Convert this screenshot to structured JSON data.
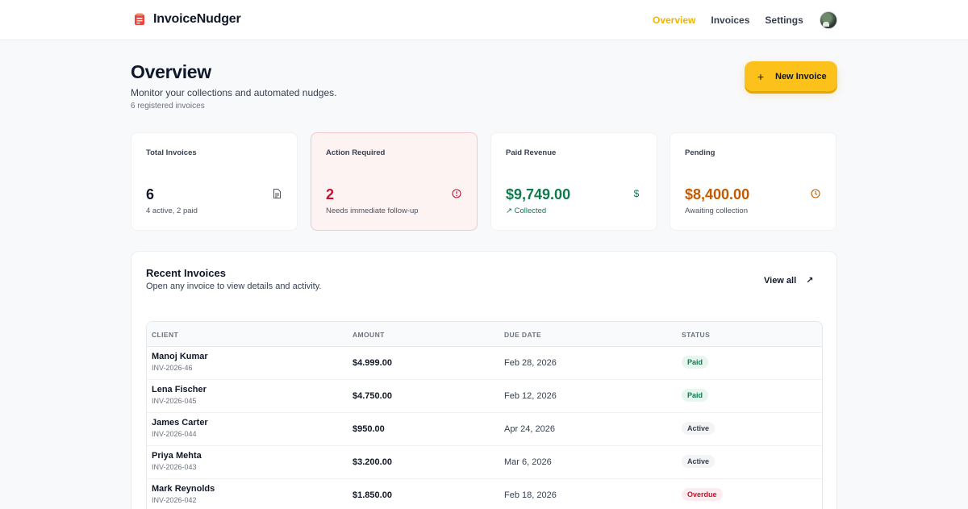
{
  "app": {
    "name": "InvoiceNudger",
    "brand_color": "#e8453c",
    "accent_color": "#fcc21b"
  },
  "nav": {
    "links": [
      {
        "label": "Overview",
        "active": true
      },
      {
        "label": "Invoices",
        "active": false
      },
      {
        "label": "Settings",
        "active": false
      }
    ],
    "avatar_icon": "user-avatar"
  },
  "header": {
    "title": "Overview",
    "subtitle": "Monitor your collections and automated nudges.",
    "count_text": "6 registered invoices",
    "new_button_label": "New Invoice",
    "new_button_icon": "plus-icon"
  },
  "stats": [
    {
      "label": "Total Invoices",
      "value": "6",
      "note": "4 active, 2 paid",
      "icon": "document-icon",
      "tone": "default"
    },
    {
      "label": "Action Required",
      "value": "2",
      "note": "Needs immediate follow-up",
      "icon": "alert-circle-icon",
      "tone": "red"
    },
    {
      "label": "Paid Revenue",
      "value": "$9,749.00",
      "note": "Collected",
      "icon": "dollar-icon",
      "note_icon": "trending-up-icon",
      "tone": "green"
    },
    {
      "label": "Pending",
      "value": "$8,400.00",
      "note": "Awaiting collection",
      "icon": "clock-icon",
      "tone": "orange"
    }
  ],
  "recent": {
    "title": "Recent Invoices",
    "subtitle": "Open any invoice to view details and activity.",
    "view_all_label": "View all",
    "view_all_icon": "arrow-up-right-icon",
    "columns": [
      "CLIENT",
      "AMOUNT",
      "DUE DATE",
      "STATUS"
    ],
    "rows": [
      {
        "client": "Manoj Kumar",
        "invoice": "INV-2026-46",
        "amount": "$4.999.00",
        "due": "Feb 28, 2026",
        "status": "Paid",
        "status_type": "paid"
      },
      {
        "client": "Lena Fischer",
        "invoice": "INV-2026-045",
        "amount": "$4.750.00",
        "due": "Feb 12, 2026",
        "status": "Paid",
        "status_type": "paid"
      },
      {
        "client": "James Carter",
        "invoice": "INV-2026-044",
        "amount": "$950.00",
        "due": "Apr 24, 2026",
        "status": "Active",
        "status_type": "active"
      },
      {
        "client": "Priya Mehta",
        "invoice": "INV-2026-043",
        "amount": "$3.200.00",
        "due": "Mar 6, 2026",
        "status": "Active",
        "status_type": "active"
      },
      {
        "client": "Mark Reynolds",
        "invoice": "INV-2026-042",
        "amount": "$1.850.00",
        "due": "Feb 18, 2026",
        "status": "Overdue",
        "status_type": "overdue"
      }
    ]
  }
}
